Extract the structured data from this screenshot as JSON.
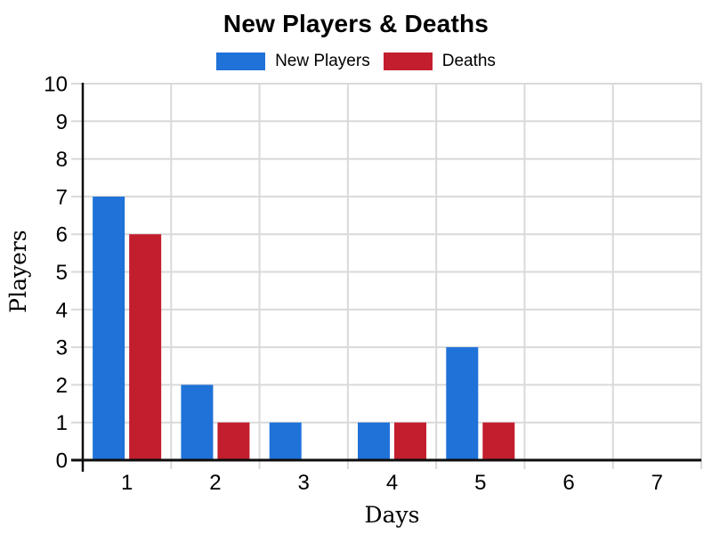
{
  "chart_data": {
    "type": "bar",
    "title": "New Players & Deaths",
    "categories": [
      "1",
      "2",
      "3",
      "4",
      "5",
      "6",
      "7"
    ],
    "series": [
      {
        "name": "New Players",
        "color": "#1f72d8",
        "values": [
          7,
          2,
          1,
          1,
          3,
          0,
          0
        ]
      },
      {
        "name": "Deaths",
        "color": "#c21e2e",
        "values": [
          6,
          1,
          0,
          1,
          1,
          0,
          0
        ]
      }
    ],
    "xlabel": "Days",
    "ylabel": "Players",
    "ylim": [
      0,
      10
    ],
    "ytick_step": 1,
    "grid": true,
    "grid_color": "#d9d9d9",
    "axis_color": "#0d0d0d",
    "legend_position": "top"
  }
}
